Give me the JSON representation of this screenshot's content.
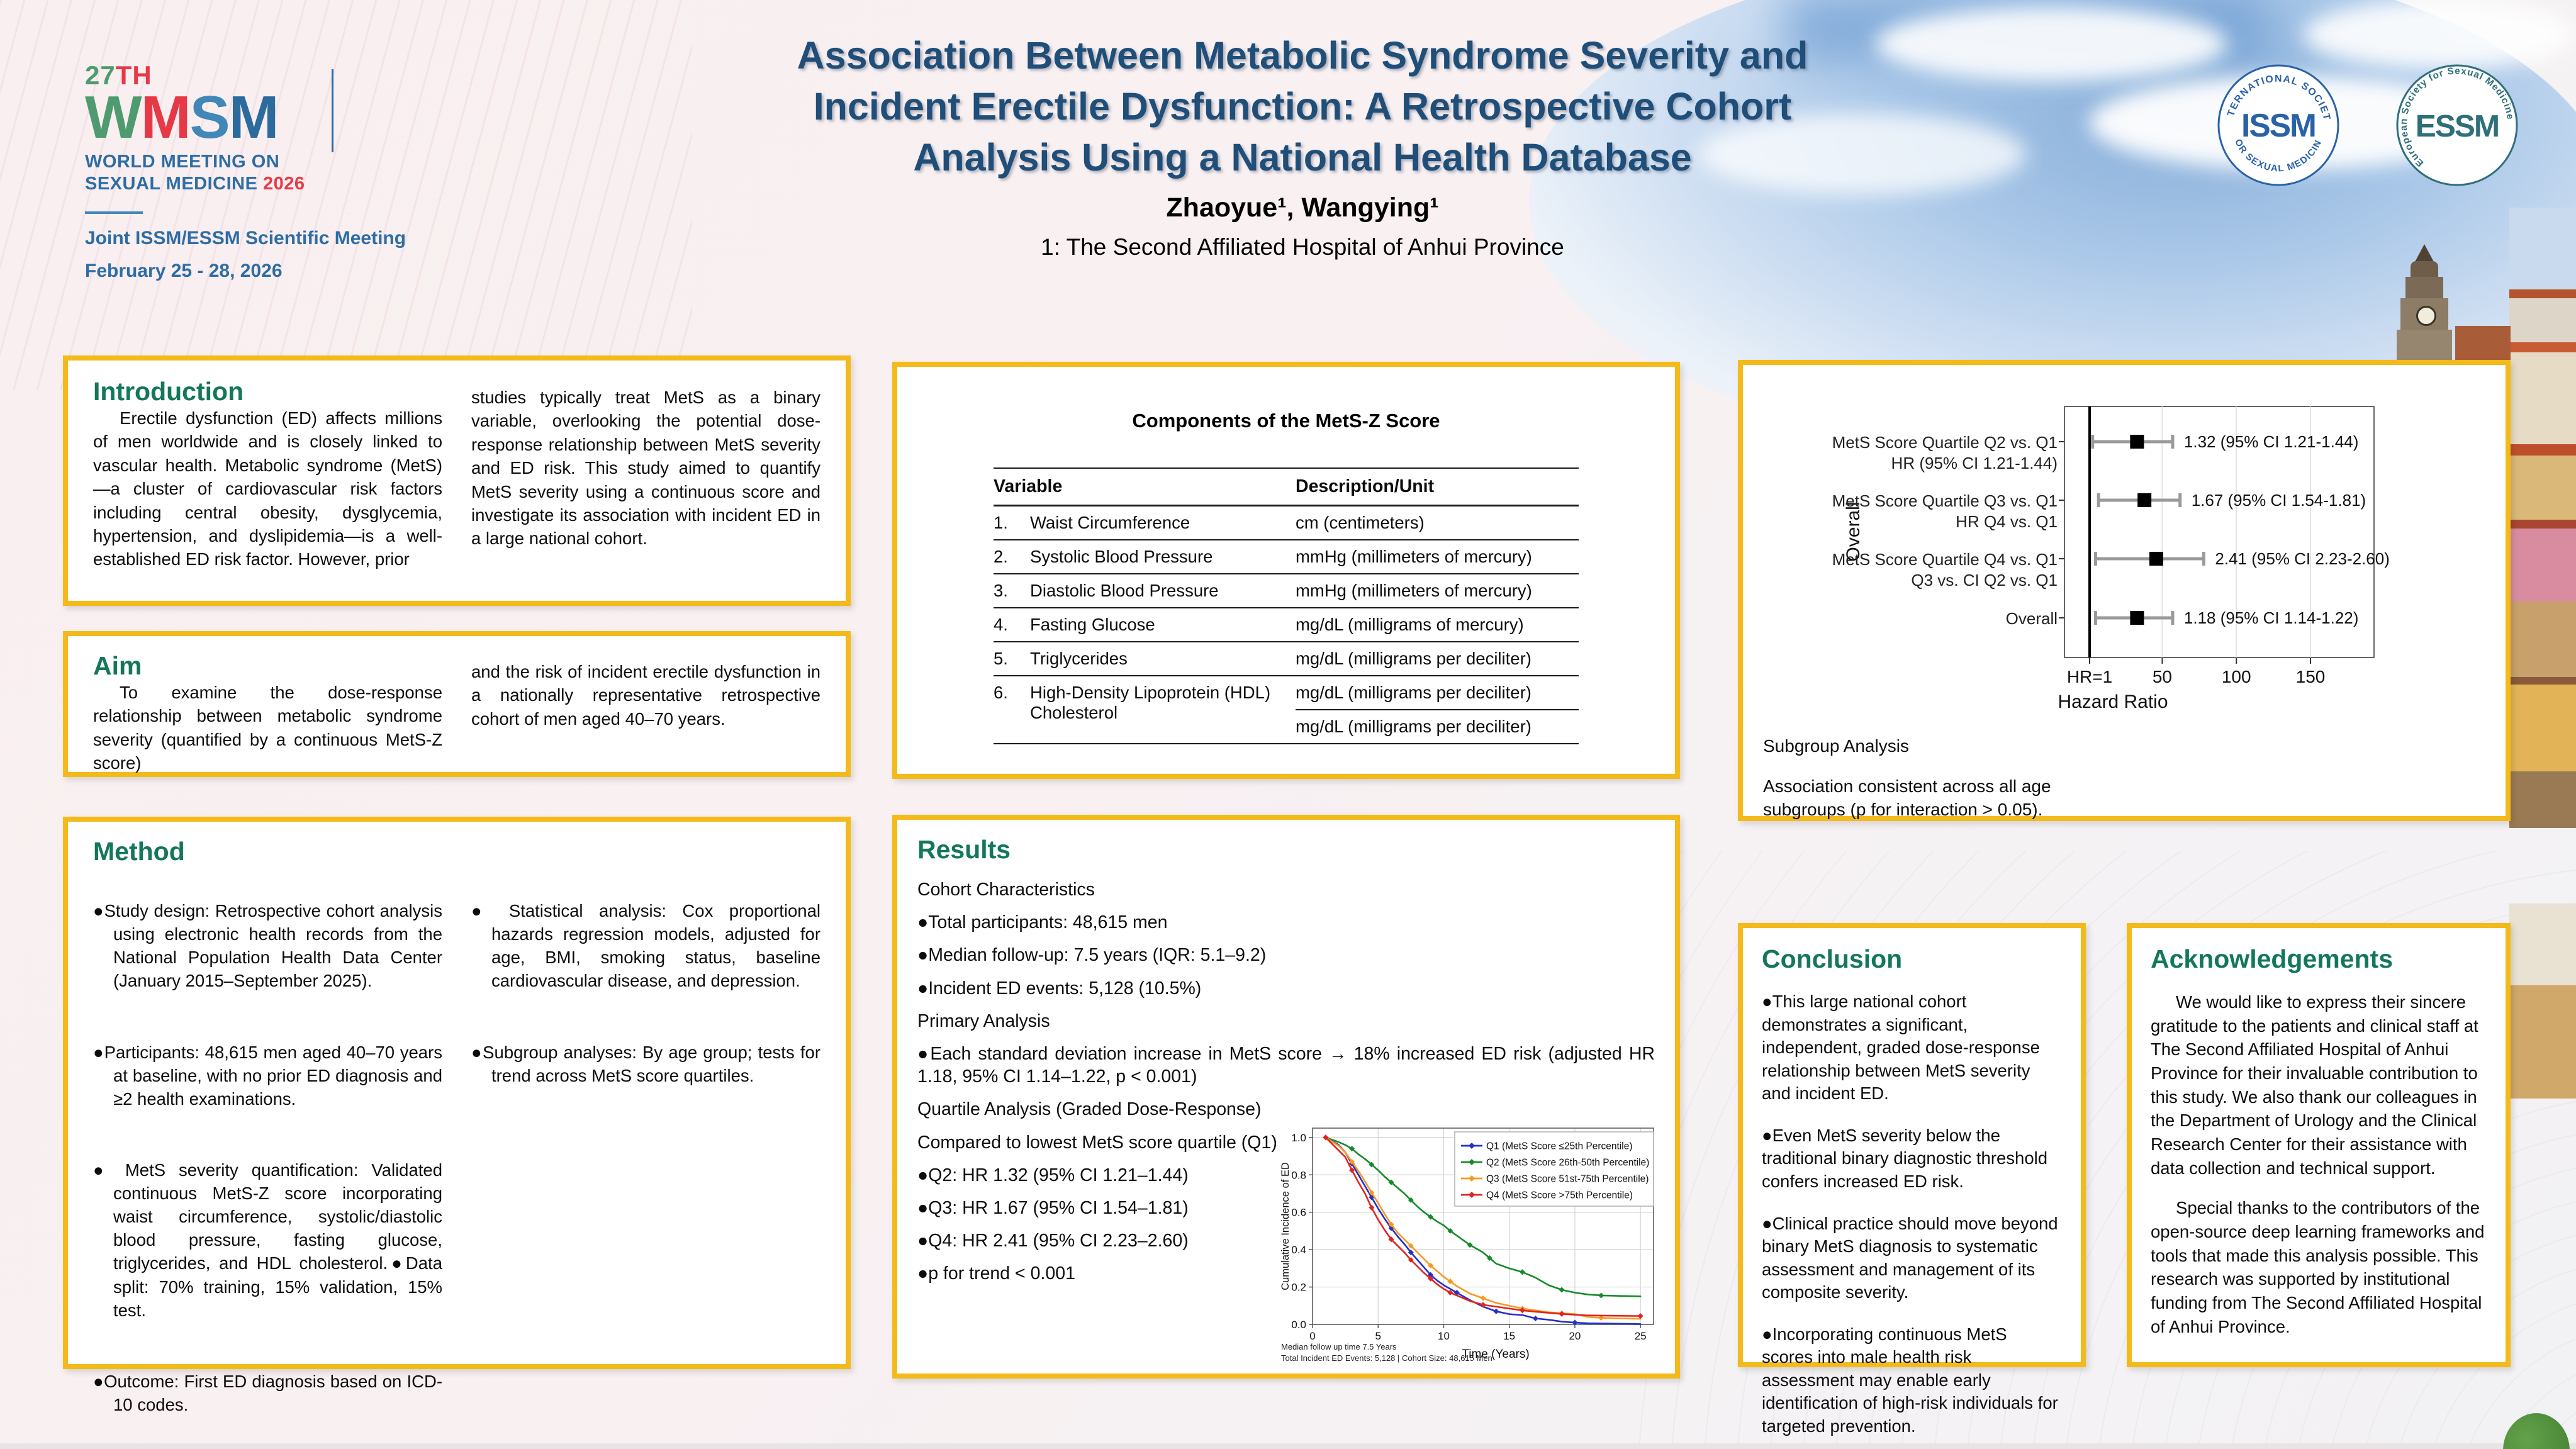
{
  "header": {
    "brand": {
      "ordinal": "27",
      "th": "TH",
      "w": "W",
      "m1": "M",
      "s": "S",
      "m2": "M",
      "line1": "WORLD MEETING ON",
      "line2": "SEXUAL MEDICINE ",
      "year": "2026",
      "meeting": "Joint ISSM/ESSM Scientific Meeting",
      "dates": "February 25 - 28, 2026"
    },
    "title1": "Association Between Metabolic Syndrome Severity and",
    "title2": "Incident Erectile Dysfunction: A Retrospective Cohort",
    "title3": "Analysis Using a National Health Database",
    "authors": "Zhaoyue¹, Wangying¹",
    "affiliation": "1: The Second Affiliated Hospital of Anhui Province",
    "issm_logo": {
      "top": "INTERNATIONAL SOCIETY",
      "mid": "ISSM",
      "bottom": "FOR SEXUAL MEDICINE"
    },
    "essm_logo": {
      "around": "European Society for Sexual Medicine",
      "mid": "ESSM"
    }
  },
  "sections": {
    "introduction": {
      "heading": "Introduction",
      "col1": "Erectile dysfunction (ED) affects millions of men worldwide and is closely linked to vascular health. Metabolic syndrome (MetS)—a cluster of cardiovascular risk factors including central obesity, dysglycemia, hypertension, and dyslipidemia—is a well-established ED risk factor. However, prior",
      "col2": "studies typically treat MetS as a binary variable, overlooking the potential dose-response relationship between MetS severity and ED risk. This study aimed to quantify MetS severity using a continuous score and investigate its association with incident ED in a large national cohort."
    },
    "aim": {
      "heading": "Aim",
      "col1": "To examine the dose-response relationship between metabolic syndrome severity (quantified by a continuous MetS-Z score)",
      "col2": "and the risk of incident erectile dysfunction in a nationally representative retrospective cohort of men aged 40–70 years."
    },
    "method": {
      "heading": "Method",
      "col1": [
        "Study design: Retrospective cohort analysis using electronic health records from the National Population Health Data Center (January 2015–September 2025).",
        "Participants: 48,615 men aged 40–70 years at baseline, with no prior ED diagnosis and ≥2 health examinations.",
        " MetS severity quantification: Validated continuous MetS-Z score incorporating waist circumference, systolic/diastolic blood pressure, fasting glucose, triglycerides, and HDL cholesterol.●Data split: 70% training, 15% validation, 15% test.",
        "Outcome: First ED diagnosis based on ICD-10 codes."
      ],
      "col2": [
        " Statistical analysis: Cox proportional hazards regression models, adjusted for age, BMI, smoking status, baseline cardiovascular disease, and depression.",
        "Subgroup analyses: By age group; tests for trend across MetS score quartiles."
      ]
    },
    "mets_table": {
      "title": "Components of the MetS-Z Score",
      "headers": [
        "Variable",
        "Description/Unit"
      ],
      "rows": [
        {
          "num": "1.",
          "name": "Waist Circumference",
          "units": [
            "cm (centimeters)"
          ]
        },
        {
          "num": "2.",
          "name": "Systolic Blood Pressure",
          "units": [
            "mmHg (millimeters of mercury)"
          ]
        },
        {
          "num": "3.",
          "name": "Diastolic Blood Pressure",
          "units": [
            "mmHg (millimeters of mercury)"
          ]
        },
        {
          "num": "4.",
          "name": "Fasting Glucose",
          "units": [
            "mg/dL (milligrams of mercury)"
          ]
        },
        {
          "num": "5.",
          "name": "Triglycerides",
          "units": [
            "mg/dL (milligrams per deciliter)"
          ]
        },
        {
          "num": "6.",
          "name": "High-Density Lipoprotein (HDL) Cholesterol",
          "units": [
            "mg/dL (milligrams per deciliter)",
            "mg/dL (milligrams per deciliter)"
          ]
        }
      ]
    },
    "results": {
      "heading": "Results",
      "lines": [
        {
          "t": "h",
          "text": "Cohort Characteristics"
        },
        {
          "t": "b",
          "text": "Total participants: 48,615 men"
        },
        {
          "t": "b",
          "text": "Median follow-up: 7.5 years (IQR: 5.1–9.2)"
        },
        {
          "t": "b",
          "text": "Incident ED events: 5,128 (10.5%)"
        },
        {
          "t": "h",
          "text": "Primary Analysis"
        },
        {
          "t": "bj",
          "text": "Each standard deviation increase in MetS score → 18% increased ED risk (adjusted HR 1.18, 95% CI 1.14–1.22, p < 0.001)"
        },
        {
          "t": "h",
          "text": "Quartile Analysis (Graded Dose-Response)"
        },
        {
          "t": "h",
          "text": "Compared to lowest MetS score quartile (Q1):"
        },
        {
          "t": "b",
          "text": "Q2: HR 1.32 (95% CI 1.21–1.44)"
        },
        {
          "t": "b",
          "text": "Q3: HR 1.67 (95% CI 1.54–1.81)"
        },
        {
          "t": "b",
          "text": "Q4: HR 2.41 (95% CI 2.23–2.60)"
        },
        {
          "t": "b",
          "text": "p for trend < 0.001"
        }
      ]
    },
    "forest_panel": {
      "subgroup_heading": "Subgroup Analysis",
      "subgroup_text": "Association consistent across all age subgroups (p for interaction > 0.05)."
    },
    "conclusion": {
      "heading": "Conclusion",
      "bullets": [
        "This large national cohort demonstrates a significant, independent, graded dose-response relationship between MetS severity and incident ED.",
        "Even MetS severity below the traditional binary diagnostic threshold confers increased ED risk.",
        "Clinical practice should move beyond binary MetS diagnosis to systematic assessment and management of its composite severity.",
        "Incorporating continuous MetS scores into male health risk assessment may enable early identification of high-risk individuals for targeted prevention."
      ]
    },
    "acknowledgements": {
      "heading": "Acknowledgements",
      "paragraphs": [
        "We would like to express their sincere gratitude to the patients and clinical staff at The Second Affiliated Hospital of Anhui Province for their invaluable contribution to this study. We also thank our colleagues in the Department of Urology and the Clinical Research Center for their assistance with data collection and technical support.",
        "Special thanks to the contributors of the open-source deep learning frameworks and tools that made this analysis possible. This research was supported by institutional funding from The Second Affiliated Hospital of Anhui Province."
      ]
    }
  },
  "chart_data": [
    {
      "type": "forest",
      "xlabel": "Hazard Ratio",
      "ylabel": "Overall",
      "ticks": [
        {
          "label": "HR=1",
          "x": 1
        },
        {
          "label": "50",
          "x": 50
        },
        {
          "label": "100",
          "x": 100
        },
        {
          "label": "150",
          "x": 150
        }
      ],
      "ref_line": 1,
      "rows": [
        {
          "label_lines": [
            "MetS Score Quartile Q2 vs. Q1",
            "HR (95% CI 1.21-1.44)"
          ],
          "hr": 1.32,
          "estimate_text": "1.32 (95% CI 1.21-1.44)",
          "plot": {
            "marker": 33,
            "ci": [
              3,
              57
            ]
          }
        },
        {
          "label_lines": [
            "MetS Score Quartile Q3 vs. Q1",
            "HR Q4 vs. Q1"
          ],
          "hr": 1.67,
          "estimate_text": "1.67 (95% CI 1.54-1.81)",
          "plot": {
            "marker": 38,
            "ci": [
              7,
              62
            ]
          }
        },
        {
          "label_lines": [
            "MetS Score Quartile Q4 vs. Q1",
            "Q3 vs. CI Q2 vs. Q1"
          ],
          "hr": 2.41,
          "estimate_text": "2.41 (95% CI 2.23-2.60)",
          "plot": {
            "marker": 46,
            "ci": [
              5,
              78
            ]
          }
        },
        {
          "label_lines": [
            "Overall"
          ],
          "hr": 1.18,
          "estimate_text": "1.18 (95% CI 1.14-1.22)",
          "plot": {
            "marker": 33,
            "ci": [
              5,
              57
            ]
          }
        }
      ]
    },
    {
      "type": "line",
      "xlabel": "Time (Years)",
      "ylabel": "Cumulative Incidence of ED",
      "xlim": [
        0,
        26
      ],
      "ylim": [
        0,
        1.05
      ],
      "xticks": [
        0,
        5,
        10,
        15,
        20,
        25
      ],
      "yticks": [
        0.0,
        0.2,
        0.4,
        0.6,
        0.8,
        1.0
      ],
      "grid": true,
      "legend_position": "top-right",
      "caption_lines": [
        "Median follow up time 7.5 Years",
        "Total Incident ED Events: 5,128 | Cohort Size: 48,615 Men"
      ],
      "series": [
        {
          "name": "Q1 (MetS Score ≤25th Percentile)",
          "color": "#2430c8",
          "x": [
            1,
            2,
            2.5,
            3,
            3.5,
            4,
            4.5,
            5,
            5.5,
            6,
            6.5,
            7,
            7.5,
            8,
            8.5,
            9,
            9.5,
            10,
            11,
            12,
            13,
            14,
            15,
            16,
            17,
            18,
            19,
            20,
            21,
            25
          ],
          "y": [
            1.0,
            0.96,
            0.92,
            0.86,
            0.8,
            0.74,
            0.68,
            0.62,
            0.565,
            0.515,
            0.47,
            0.43,
            0.385,
            0.345,
            0.305,
            0.265,
            0.235,
            0.21,
            0.17,
            0.13,
            0.095,
            0.07,
            0.055,
            0.05,
            0.032,
            0.025,
            0.015,
            0.01,
            0.006,
            0.002
          ]
        },
        {
          "name": "Q2 (MetS Score 26th-50th Percentile)",
          "color": "#168a2b",
          "x": [
            1,
            2,
            2.5,
            3,
            3.5,
            4,
            4.5,
            5,
            5.5,
            6,
            6.5,
            7,
            7.5,
            8,
            8.5,
            9,
            9.5,
            10,
            10.5,
            11,
            11.5,
            12,
            12.5,
            13,
            13.5,
            14,
            15,
            16,
            17,
            18,
            19,
            20,
            21,
            22,
            25
          ],
          "y": [
            1.0,
            0.975,
            0.96,
            0.94,
            0.91,
            0.885,
            0.855,
            0.825,
            0.79,
            0.76,
            0.73,
            0.7,
            0.665,
            0.63,
            0.6,
            0.575,
            0.55,
            0.53,
            0.5,
            0.475,
            0.45,
            0.425,
            0.405,
            0.385,
            0.355,
            0.325,
            0.3,
            0.28,
            0.25,
            0.21,
            0.185,
            0.17,
            0.16,
            0.155,
            0.15
          ]
        },
        {
          "name": "Q3 (MetS Score 51st-75th Percentile)",
          "color": "#f59a23",
          "x": [
            1,
            2,
            2.5,
            3,
            3.5,
            4,
            4.5,
            5,
            5.5,
            6,
            6.5,
            7,
            7.5,
            8,
            8.5,
            9,
            9.5,
            10,
            10.5,
            11,
            12,
            13,
            14,
            15,
            16,
            17,
            18,
            19,
            20,
            21,
            22,
            25
          ],
          "y": [
            1.0,
            0.955,
            0.92,
            0.87,
            0.82,
            0.765,
            0.705,
            0.65,
            0.59,
            0.535,
            0.49,
            0.455,
            0.42,
            0.385,
            0.35,
            0.315,
            0.285,
            0.255,
            0.23,
            0.205,
            0.165,
            0.14,
            0.115,
            0.1,
            0.085,
            0.075,
            0.065,
            0.06,
            0.055,
            0.04,
            0.035,
            0.03
          ]
        },
        {
          "name": "Q4 (MetS Score >75th Percentile)",
          "color": "#e02421",
          "x": [
            1,
            2,
            2.5,
            3,
            3.5,
            4,
            4.5,
            5,
            5.5,
            6,
            6.5,
            7,
            7.5,
            8,
            8.5,
            9,
            9.5,
            10,
            10.5,
            11,
            12,
            13,
            14,
            15,
            16,
            17,
            18,
            19,
            20,
            21,
            25
          ],
          "y": [
            1.0,
            0.93,
            0.895,
            0.825,
            0.76,
            0.7,
            0.625,
            0.56,
            0.505,
            0.455,
            0.42,
            0.385,
            0.345,
            0.31,
            0.275,
            0.245,
            0.215,
            0.19,
            0.17,
            0.155,
            0.125,
            0.105,
            0.095,
            0.085,
            0.075,
            0.068,
            0.062,
            0.056,
            0.052,
            0.048,
            0.045
          ]
        }
      ]
    }
  ]
}
